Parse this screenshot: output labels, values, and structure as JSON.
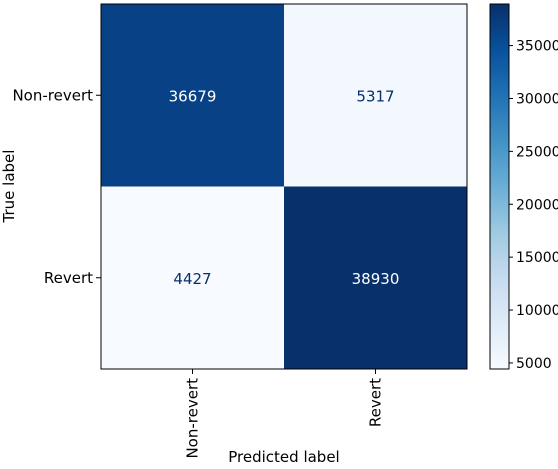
{
  "chart_data": {
    "type": "heatmap",
    "subtype": "confusion-matrix",
    "row_categories": [
      "Non-revert",
      "Revert"
    ],
    "col_categories": [
      "Non-revert",
      "Revert"
    ],
    "values": [
      [
        36679,
        5317
      ],
      [
        4427,
        38930
      ]
    ],
    "xlabel": "Predicted label",
    "ylabel": "True label",
    "colormap": "Blues",
    "colorbar": {
      "range": [
        4427,
        38930
      ],
      "ticks": [
        5000,
        10000,
        15000,
        20000,
        25000,
        30000,
        35000
      ],
      "tick_labels": [
        "5000",
        "10000",
        "15000",
        "20000",
        "25000",
        "30000",
        "35000"
      ]
    },
    "colors": {
      "low": "#f7fbff",
      "high": "#08306b",
      "text_on_dark": "#ffffff",
      "text_on_light": "#08306b"
    }
  }
}
